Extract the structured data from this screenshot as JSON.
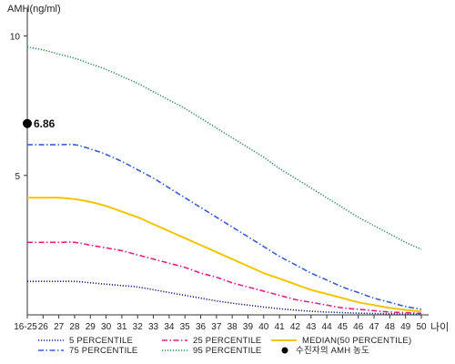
{
  "chart_data": {
    "type": "line",
    "ylabel": "AMH(ng/ml)",
    "xlabel": "나이",
    "x_categories": [
      "16-25",
      "26",
      "27",
      "28",
      "29",
      "30",
      "31",
      "32",
      "33",
      "34",
      "35",
      "36",
      "37",
      "38",
      "39",
      "40",
      "41",
      "42",
      "43",
      "44",
      "45",
      "46",
      "47",
      "48",
      "49",
      "50"
    ],
    "y_ticks": [
      5,
      10
    ],
    "ylim": [
      0,
      10.8
    ],
    "series": [
      {
        "name": "95 PERCENTILE",
        "color": "#2e8b57",
        "style": "dotted",
        "values": [
          9.6,
          9.5,
          9.35,
          9.2,
          9.0,
          8.8,
          8.55,
          8.3,
          8.0,
          7.7,
          7.4,
          7.05,
          6.7,
          6.35,
          6.0,
          5.65,
          5.25,
          4.9,
          4.55,
          4.2,
          3.85,
          3.5,
          3.2,
          2.9,
          2.6,
          2.35
        ]
      },
      {
        "name": "75 PERCENTILE",
        "color": "#3a5fcd",
        "style": "dashdot",
        "values": [
          6.1,
          6.1,
          6.1,
          6.1,
          5.95,
          5.75,
          5.5,
          5.2,
          4.9,
          4.55,
          4.2,
          3.85,
          3.5,
          3.15,
          2.8,
          2.45,
          2.1,
          1.8,
          1.5,
          1.25,
          1.0,
          0.8,
          0.6,
          0.45,
          0.3,
          0.2
        ]
      },
      {
        "name": "MEDIAN(50 PERCENTILE)",
        "color": "#f2c500",
        "style": "solid",
        "values": [
          4.2,
          4.2,
          4.2,
          4.15,
          4.05,
          3.9,
          3.7,
          3.5,
          3.25,
          3.0,
          2.75,
          2.5,
          2.25,
          2.0,
          1.75,
          1.5,
          1.3,
          1.1,
          0.9,
          0.75,
          0.6,
          0.45,
          0.35,
          0.25,
          0.18,
          0.12
        ]
      },
      {
        "name": "25 PERCENTILE",
        "color": "#e0208a",
        "style": "dashdot",
        "values": [
          2.6,
          2.6,
          2.6,
          2.6,
          2.5,
          2.4,
          2.3,
          2.15,
          2.0,
          1.85,
          1.7,
          1.5,
          1.35,
          1.15,
          1.0,
          0.85,
          0.7,
          0.55,
          0.45,
          0.35,
          0.25,
          0.2,
          0.15,
          0.1,
          0.08,
          0.05
        ]
      },
      {
        "name": "5 PERCENTILE",
        "color": "#1a237e",
        "style": "dotted",
        "values": [
          1.2,
          1.2,
          1.2,
          1.2,
          1.15,
          1.1,
          1.05,
          1.0,
          0.9,
          0.8,
          0.7,
          0.6,
          0.5,
          0.42,
          0.35,
          0.28,
          0.22,
          0.17,
          0.13,
          0.1,
          0.08,
          0.06,
          0.05,
          0.04,
          0.03,
          0.02
        ]
      }
    ],
    "patient": {
      "label": "수진자의 AMH 농도",
      "x": "16-25",
      "y": 6.86,
      "display": "6.86"
    },
    "legend": {
      "placement": "bottom",
      "entries": [
        {
          "name": "5 PERCENTILE",
          "color": "#1a237e",
          "style": "dotted"
        },
        {
          "name": "25 PERCENTILE",
          "color": "#e0208a",
          "style": "dashdot"
        },
        {
          "name": "MEDIAN(50 PERCENTILE)",
          "color": "#f2c500",
          "style": "solid"
        },
        {
          "name": "75 PERCENTILE",
          "color": "#3a5fcd",
          "style": "dashdot"
        },
        {
          "name": "95 PERCENTILE",
          "color": "#2e8b57",
          "style": "dotted"
        },
        {
          "name": "수진자의 AMH 농도",
          "color": "#000000",
          "style": "marker"
        }
      ]
    }
  }
}
